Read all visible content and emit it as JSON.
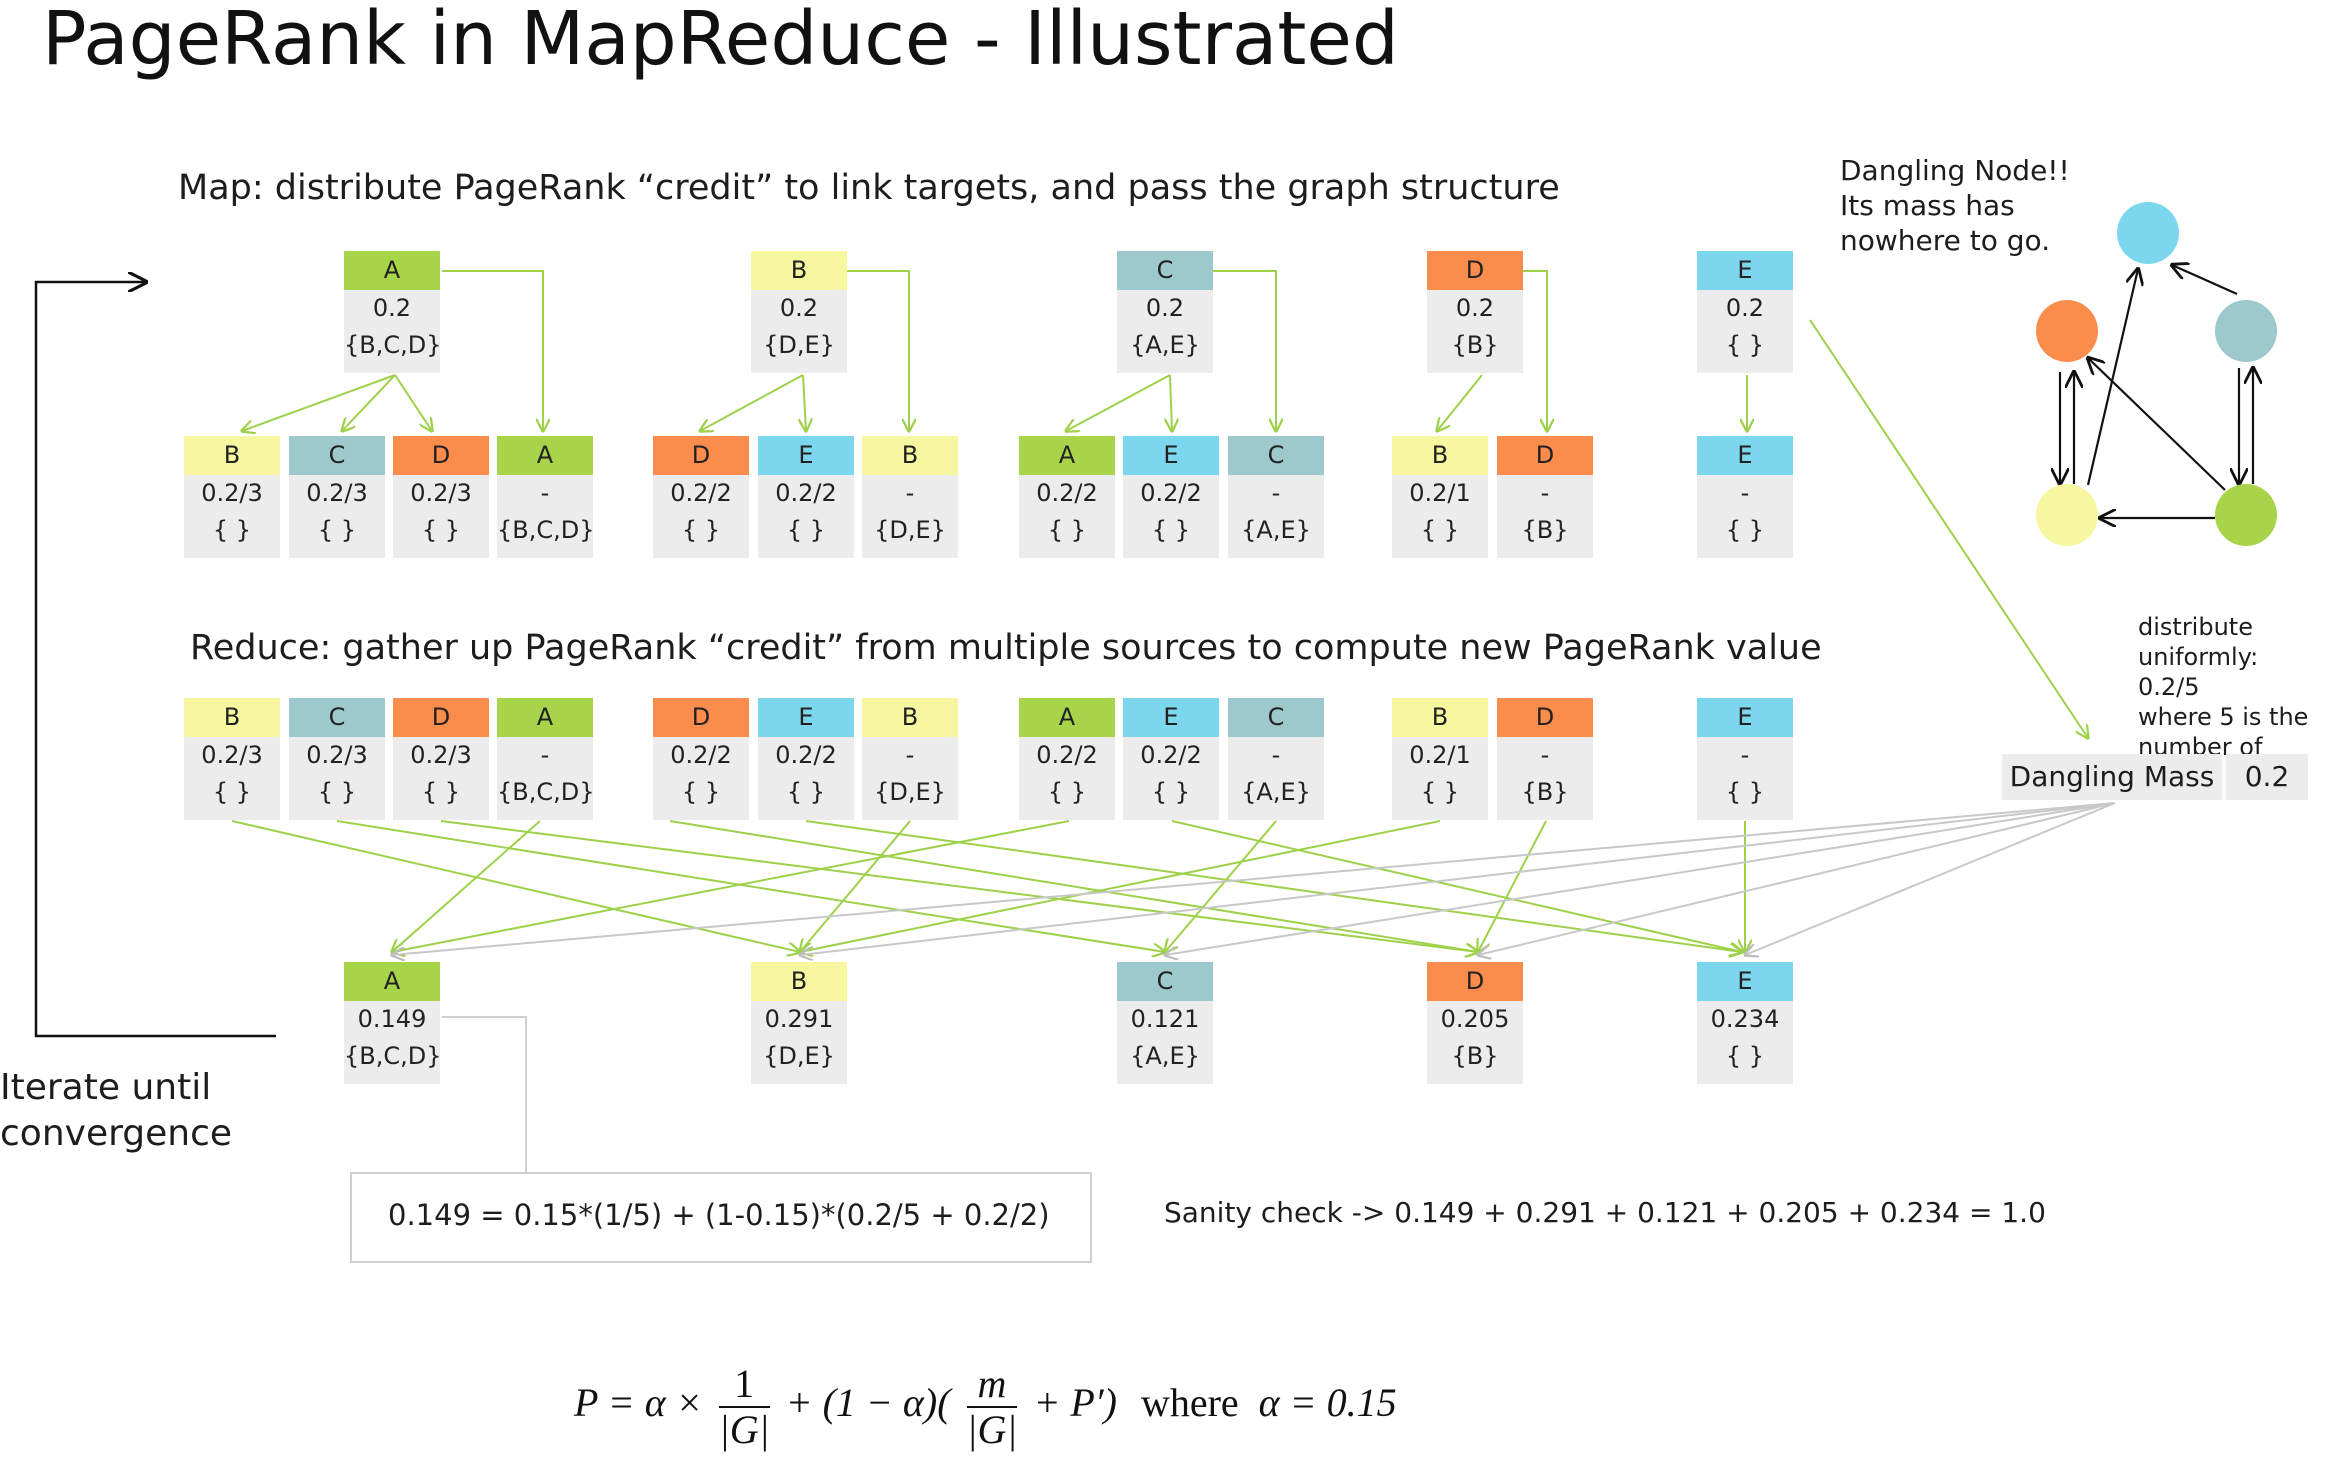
{
  "title": "PageRank in MapReduce - Illustrated",
  "map_heading": "Map: distribute PageRank “credit” to link targets, and pass the graph structure",
  "reduce_heading": "Reduce: gather up PageRank “credit” from multiple sources to compute new PageRank value",
  "colors": {
    "A": "#a8d44a",
    "B": "#f6f79e",
    "C": "#9ec9cc",
    "D": "#fa8c4c",
    "E": "#7cd7ee"
  },
  "map_inputs": [
    {
      "id": "A",
      "rank": "0.2",
      "adj": "{B,C,D}"
    },
    {
      "id": "B",
      "rank": "0.2",
      "adj": "{D,E}"
    },
    {
      "id": "C",
      "rank": "0.2",
      "adj": "{A,E}"
    },
    {
      "id": "D",
      "rank": "0.2",
      "adj": "{B}"
    },
    {
      "id": "E",
      "rank": "0.2",
      "adj": "{ }"
    }
  ],
  "map_outputs": [
    {
      "id": "B",
      "rank": "0.2/3",
      "adj": "{ }"
    },
    {
      "id": "C",
      "rank": "0.2/3",
      "adj": "{ }"
    },
    {
      "id": "D",
      "rank": "0.2/3",
      "adj": "{ }"
    },
    {
      "id": "A",
      "rank": "-",
      "adj": "{B,C,D}"
    },
    {
      "id": "D",
      "rank": "0.2/2",
      "adj": "{ }"
    },
    {
      "id": "E",
      "rank": "0.2/2",
      "adj": "{ }"
    },
    {
      "id": "B",
      "rank": "-",
      "adj": "{D,E}"
    },
    {
      "id": "A",
      "rank": "0.2/2",
      "adj": "{ }"
    },
    {
      "id": "E",
      "rank": "0.2/2",
      "adj": "{ }"
    },
    {
      "id": "C",
      "rank": "-",
      "adj": "{A,E}"
    },
    {
      "id": "B",
      "rank": "0.2/1",
      "adj": "{ }"
    },
    {
      "id": "D",
      "rank": "-",
      "adj": "{B}"
    },
    {
      "id": "E",
      "rank": "-",
      "adj": "{ }"
    }
  ],
  "reduce_results": [
    {
      "id": "A",
      "rank": "0.149",
      "adj": "{B,C,D}"
    },
    {
      "id": "B",
      "rank": "0.291",
      "adj": "{D,E}"
    },
    {
      "id": "C",
      "rank": "0.121",
      "adj": "{A,E}"
    },
    {
      "id": "D",
      "rank": "0.205",
      "adj": "{B}"
    },
    {
      "id": "E",
      "rank": "0.234",
      "adj": "{ }"
    }
  ],
  "dangling_note": [
    "Dangling Node!!",
    "Its mass has",
    "nowhere to go."
  ],
  "distribute_note": [
    "distribute",
    "uniformly: 0.2/5",
    "where 5 is the",
    "number of nodes"
  ],
  "dangling_mass": {
    "label": "Dangling Mass",
    "value": "0.2"
  },
  "iterate_note": [
    "Iterate until",
    "convergence"
  ],
  "calculation": "0.149 = 0.15*(1/5) + (1-0.15)*(0.2/5 + 0.2/2)",
  "sanity_check": "Sanity check ->  0.149 + 0.291 + 0.121 + 0.205 + 0.234 = 1.0",
  "formula": {
    "lhs": "P = α ×",
    "frac1_num": "1",
    "frac1_den": "|G|",
    "mid": "+ (1 − α)(",
    "frac2_num": "m",
    "frac2_den": "|G|",
    "tail": "+ P′)",
    "where": "where",
    "alpha": "α = 0.15"
  }
}
